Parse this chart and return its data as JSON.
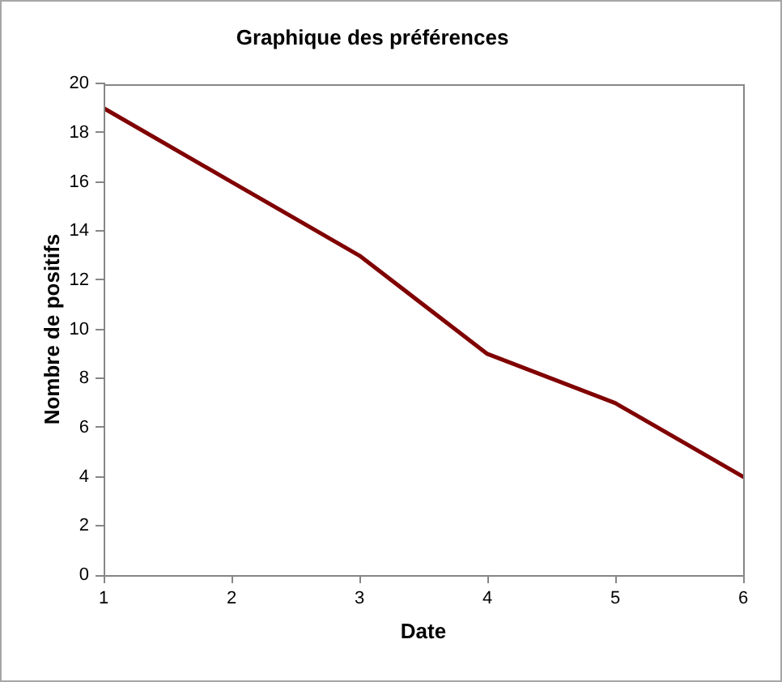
{
  "chart_data": {
    "type": "line",
    "title": "Graphique des préférences",
    "xlabel": "Date",
    "ylabel": "Nombre de positifs",
    "x": [
      1,
      2,
      3,
      4,
      5,
      6
    ],
    "series": [
      {
        "color": "#800000",
        "values": [
          19,
          16,
          13,
          9,
          7,
          4
        ]
      }
    ],
    "xlim": [
      1,
      6
    ],
    "xticks": [
      1,
      2,
      3,
      4,
      5,
      6
    ],
    "ylim": [
      0,
      20
    ],
    "yticks": [
      0,
      2,
      4,
      6,
      8,
      10,
      12,
      14,
      16,
      18,
      20
    ],
    "grid": false,
    "marker": "none",
    "line_style": "solid"
  }
}
